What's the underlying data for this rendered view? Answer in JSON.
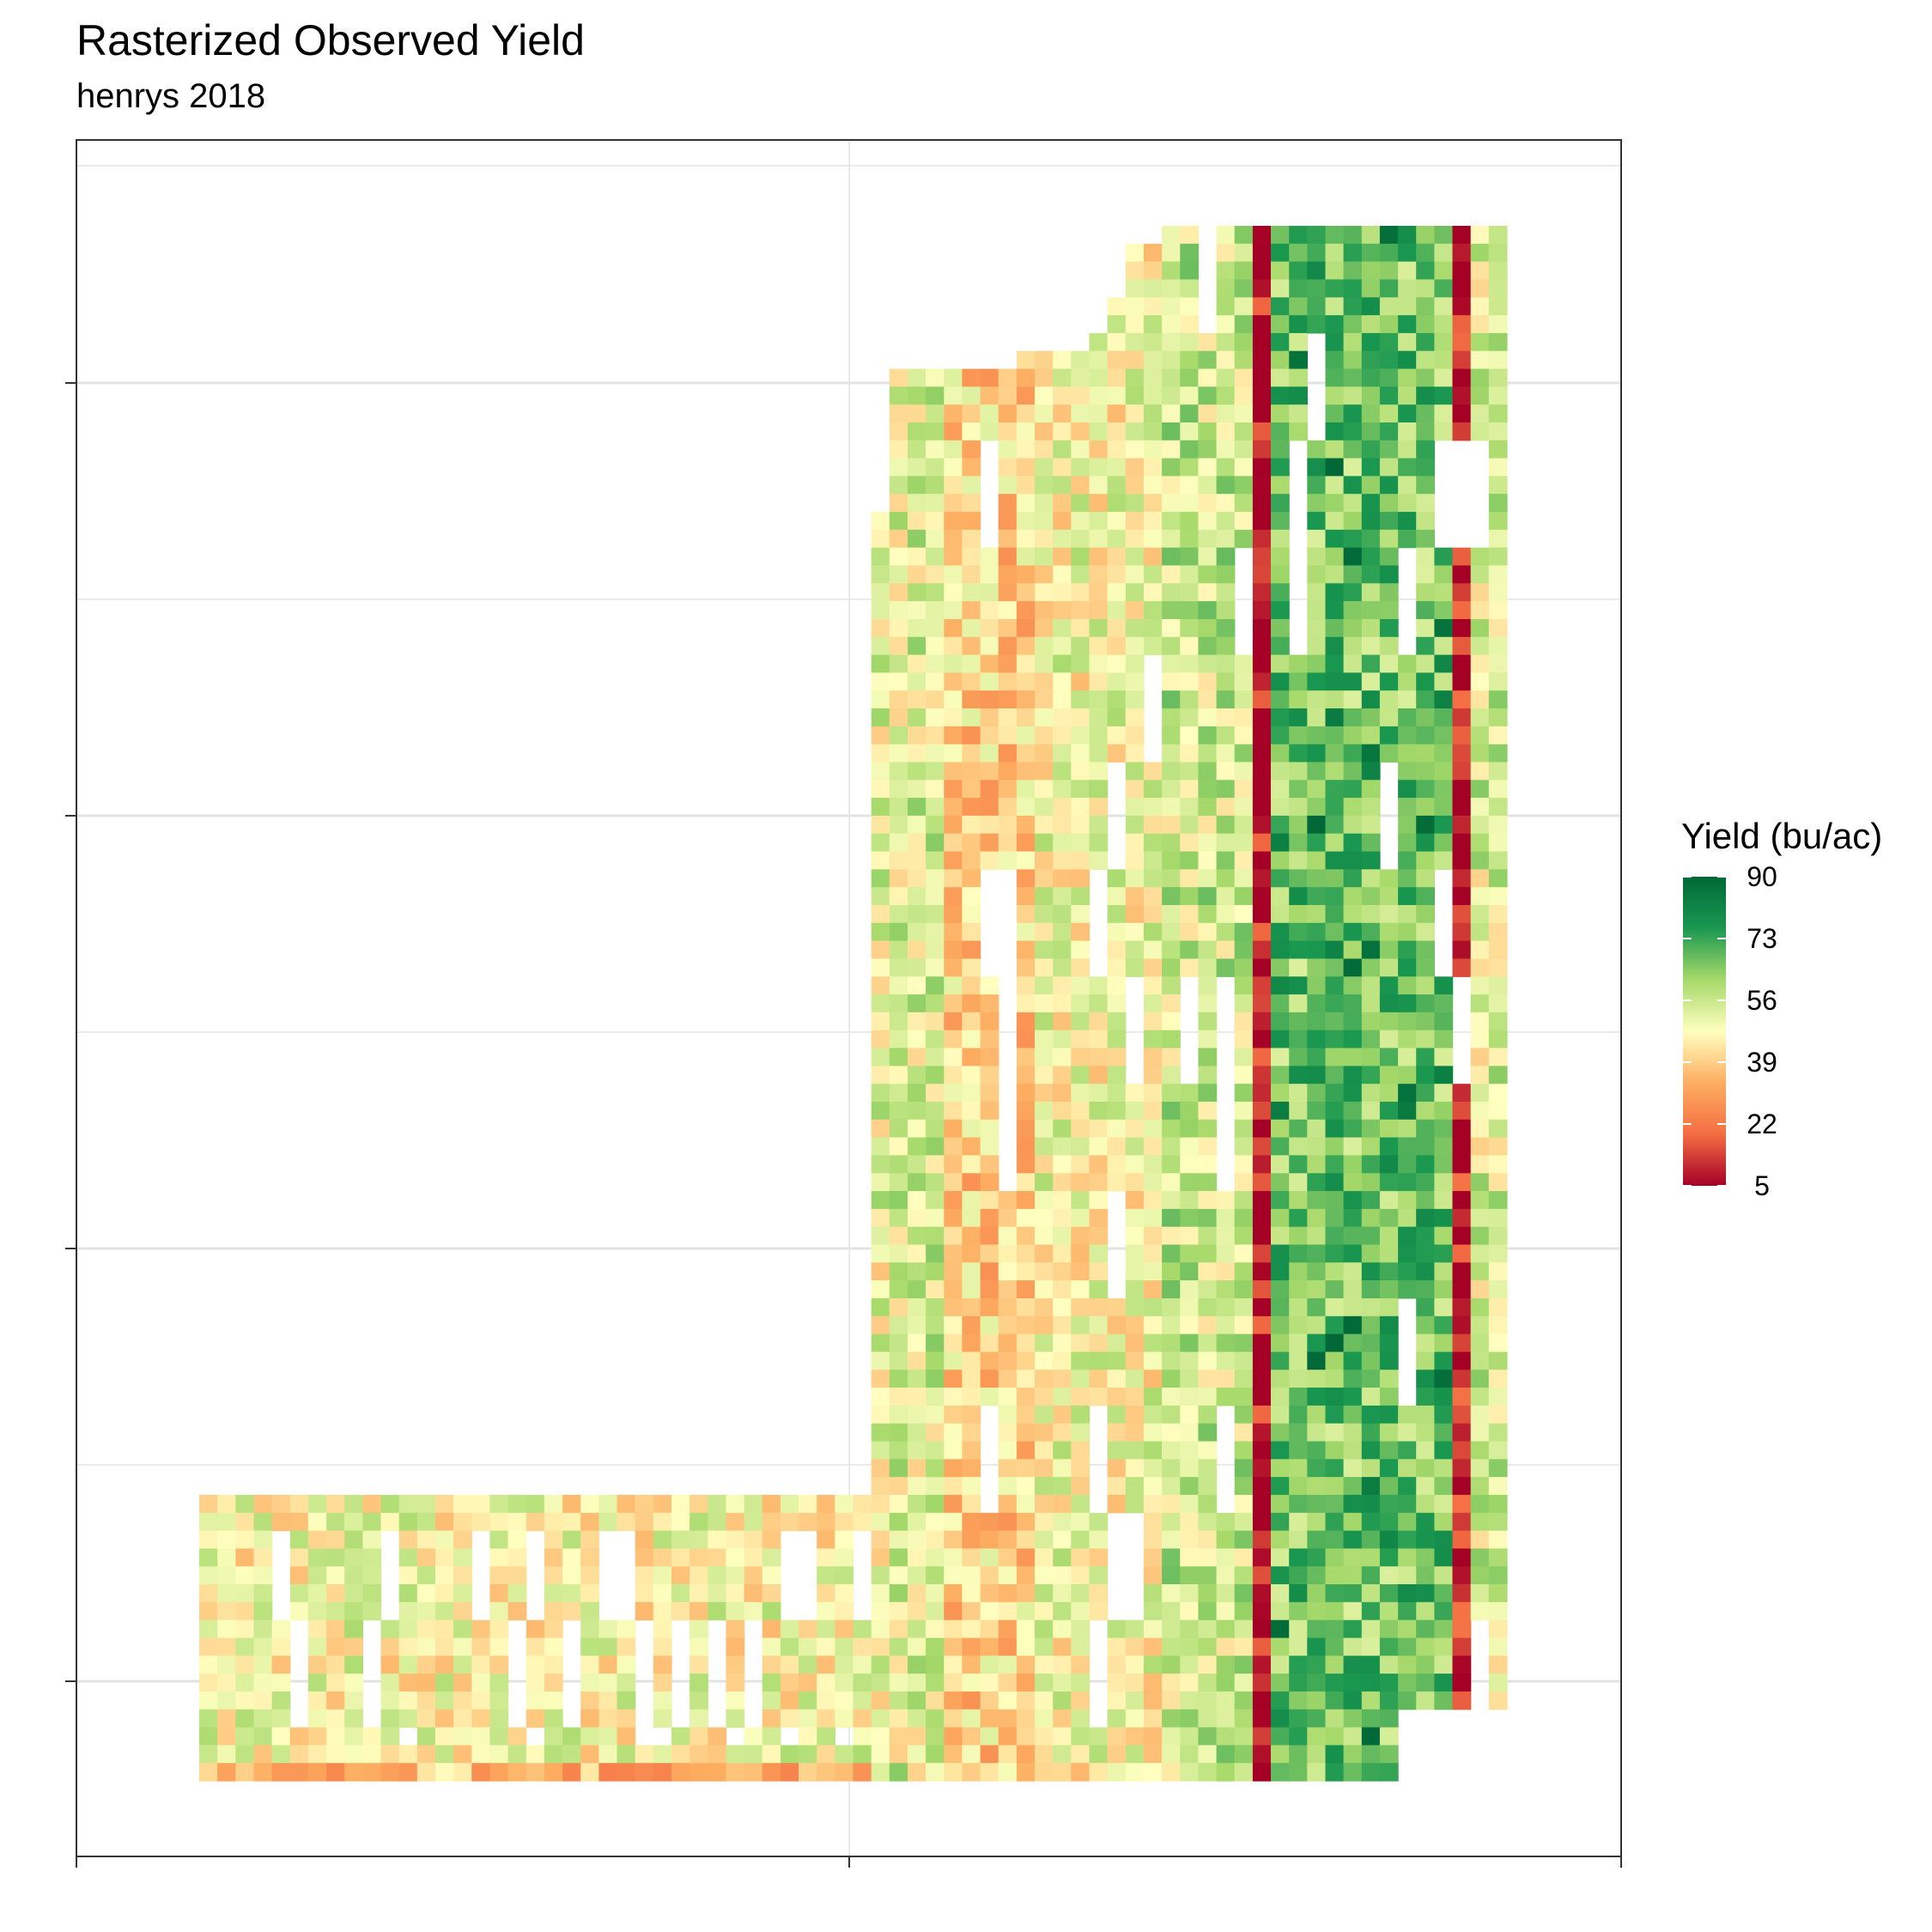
{
  "chart_data": {
    "type": "heatmap",
    "title": "Rasterized Observed Yield",
    "subtitle": "henrys 2018",
    "xlabel": "",
    "ylabel": "",
    "grid": true,
    "x_tick_labels": [],
    "y_tick_labels": [],
    "legend": {
      "title": "Yield (bu/ac)",
      "placement": "right",
      "min": 5,
      "max": 90,
      "ticks": [
        "90",
        "73",
        "56",
        "39",
        "22",
        "5"
      ],
      "colors": [
        "#a50026",
        "#f46d43",
        "#fdae61",
        "#ffffbf",
        "#a6d96a",
        "#1a9850",
        "#006837"
      ]
    },
    "grid_columns": 72,
    "grid_rows": 87,
    "field_extent": {
      "upper_block_columns": [
        37,
        71
      ],
      "upper_block_rows": [
        0,
        86
      ],
      "lower_block_columns": [
        0,
        36
      ],
      "lower_block_rows": [
        71,
        86
      ]
    },
    "column_mean_yield": [
      {
        "columns": [
          0,
          36
        ],
        "yield": 48,
        "note_rows": "lower strip"
      },
      {
        "columns": [
          38,
          40
        ],
        "yield": 52
      },
      {
        "columns": [
          39,
          39
        ],
        "yield": 6
      },
      {
        "columns": [
          41,
          45
        ],
        "yield": 40
      },
      {
        "columns": [
          46,
          52
        ],
        "yield": 48
      },
      {
        "columns": [
          53,
          57
        ],
        "yield": 55
      },
      {
        "columns": [
          58,
          58
        ],
        "yield": 6
      },
      {
        "columns": [
          59,
          68
        ],
        "yield": 66
      },
      {
        "columns": [
          69,
          69
        ],
        "yield": 8
      },
      {
        "columns": [
          70,
          71
        ],
        "yield": 52
      }
    ],
    "value_range": [
      5,
      90
    ]
  }
}
